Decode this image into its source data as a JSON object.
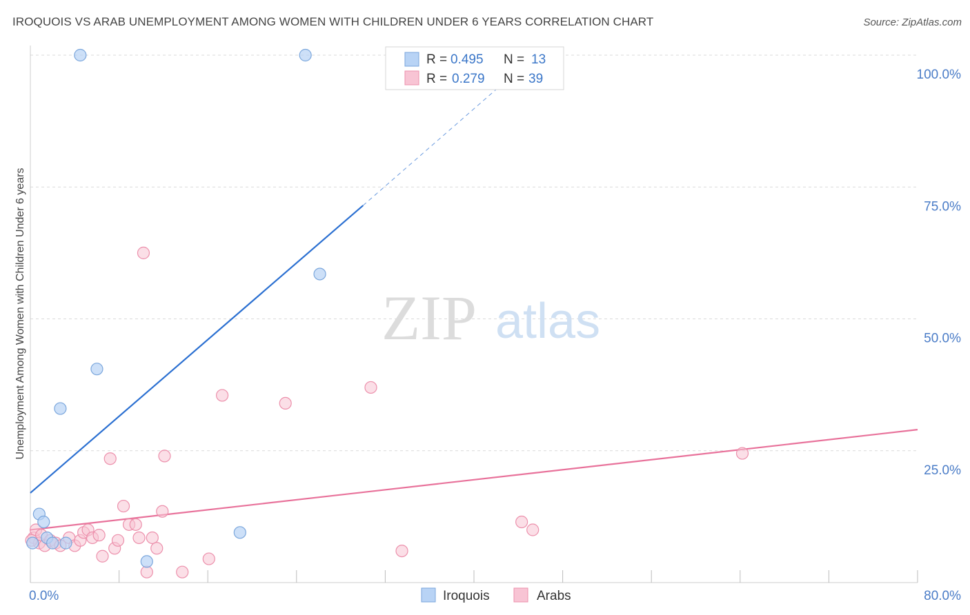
{
  "header": {
    "title": "IROQUOIS VS ARAB UNEMPLOYMENT AMONG WOMEN WITH CHILDREN UNDER 6 YEARS CORRELATION CHART",
    "source": "Source: ZipAtlas.com"
  },
  "watermark": {
    "zip": "ZIP",
    "atlas": "atlas"
  },
  "stats_legend": {
    "rows": [
      {
        "r_label": "R =",
        "r_value": "0.495",
        "n_label": "N =",
        "n_value": "13",
        "series": "Iroquois"
      },
      {
        "r_label": "R =",
        "r_value": "0.279",
        "n_label": "N =",
        "n_value": "39",
        "series": "Arabs"
      }
    ]
  },
  "chart_data": {
    "type": "scatter",
    "title": "IROQUOIS VS ARAB UNEMPLOYMENT AMONG WOMEN WITH CHILDREN UNDER 6 YEARS CORRELATION CHART",
    "xlabel": "",
    "ylabel": "Unemployment Among Women with Children Under 6 years",
    "xlim": [
      0,
      80
    ],
    "ylim": [
      0,
      100
    ],
    "x_tick_labels": [
      "0.0%",
      "80.0%"
    ],
    "y_ticks": [
      25,
      50,
      75,
      100
    ],
    "y_tick_labels": [
      "25.0%",
      "50.0%",
      "75.0%",
      "100.0%"
    ],
    "grid": true,
    "legend_position": "bottom-center",
    "colors": {
      "iroquois_fill": "#b8d3f5",
      "iroquois_stroke": "#7aa6dc",
      "iroquois_line": "#2a6fd1",
      "arabs_fill": "#f8c4d4",
      "arabs_stroke": "#ec8fab",
      "arabs_line": "#e8719a",
      "tick_label": "#4a7cc7"
    },
    "series": [
      {
        "name": "Iroquois",
        "trend": {
          "x0": 0,
          "y0": 17,
          "x1": 30,
          "y1": 71.5,
          "dash_to_x": 45,
          "dash_to_y": 99
        },
        "points": [
          {
            "x": 0.2,
            "y": 7.5
          },
          {
            "x": 0.8,
            "y": 13
          },
          {
            "x": 1.2,
            "y": 11.5
          },
          {
            "x": 1.5,
            "y": 8.5
          },
          {
            "x": 2.0,
            "y": 7.5
          },
          {
            "x": 2.7,
            "y": 33
          },
          {
            "x": 3.2,
            "y": 7.5
          },
          {
            "x": 4.5,
            "y": 100
          },
          {
            "x": 6.0,
            "y": 40.5
          },
          {
            "x": 10.5,
            "y": 4
          },
          {
            "x": 18.9,
            "y": 9.5
          },
          {
            "x": 24.8,
            "y": 100
          },
          {
            "x": 26.1,
            "y": 58.5
          }
        ]
      },
      {
        "name": "Arabs",
        "trend": {
          "x0": 0,
          "y0": 10,
          "x1": 80,
          "y1": 29
        },
        "points": [
          {
            "x": 0.3,
            "y": 8.5
          },
          {
            "x": 0.5,
            "y": 10
          },
          {
            "x": 0.8,
            "y": 7.5
          },
          {
            "x": 1.0,
            "y": 9
          },
          {
            "x": 1.3,
            "y": 7
          },
          {
            "x": 1.8,
            "y": 8
          },
          {
            "x": 2.3,
            "y": 7.5
          },
          {
            "x": 2.7,
            "y": 7
          },
          {
            "x": 3.5,
            "y": 8.5
          },
          {
            "x": 4.0,
            "y": 7
          },
          {
            "x": 4.5,
            "y": 8
          },
          {
            "x": 4.8,
            "y": 9.5
          },
          {
            "x": 5.2,
            "y": 10
          },
          {
            "x": 5.6,
            "y": 8.5
          },
          {
            "x": 6.2,
            "y": 9
          },
          {
            "x": 6.5,
            "y": 5
          },
          {
            "x": 7.2,
            "y": 23.5
          },
          {
            "x": 7.6,
            "y": 6.5
          },
          {
            "x": 7.9,
            "y": 8
          },
          {
            "x": 8.4,
            "y": 14.5
          },
          {
            "x": 8.9,
            "y": 11
          },
          {
            "x": 9.5,
            "y": 11
          },
          {
            "x": 9.8,
            "y": 8.5
          },
          {
            "x": 10.2,
            "y": 62.5
          },
          {
            "x": 10.5,
            "y": 2
          },
          {
            "x": 11.0,
            "y": 8.5
          },
          {
            "x": 11.4,
            "y": 6.5
          },
          {
            "x": 11.9,
            "y": 13.5
          },
          {
            "x": 12.1,
            "y": 24
          },
          {
            "x": 13.7,
            "y": 2
          },
          {
            "x": 16.1,
            "y": 4.5
          },
          {
            "x": 17.3,
            "y": 35.5
          },
          {
            "x": 23.0,
            "y": 34
          },
          {
            "x": 30.7,
            "y": 37
          },
          {
            "x": 33.5,
            "y": 6
          },
          {
            "x": 44.3,
            "y": 11.5
          },
          {
            "x": 45.3,
            "y": 10
          },
          {
            "x": 64.2,
            "y": 24.5
          },
          {
            "x": 0.1,
            "y": 8
          }
        ]
      }
    ]
  }
}
